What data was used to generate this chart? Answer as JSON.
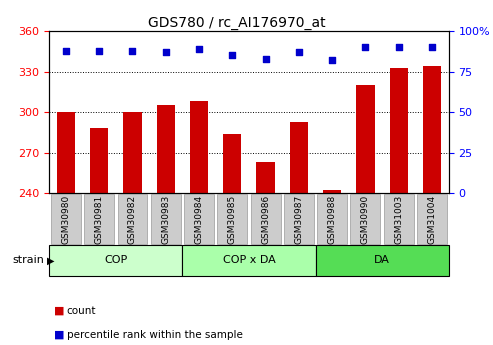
{
  "title": "GDS780 / rc_AI176970_at",
  "samples": [
    "GSM30980",
    "GSM30981",
    "GSM30982",
    "GSM30983",
    "GSM30984",
    "GSM30985",
    "GSM30986",
    "GSM30987",
    "GSM30988",
    "GSM30990",
    "GSM31003",
    "GSM31004"
  ],
  "bar_values": [
    300,
    288,
    300,
    305,
    308,
    284,
    263,
    293,
    242,
    320,
    333,
    334
  ],
  "percentile_values": [
    88,
    88,
    88,
    87,
    89,
    85,
    83,
    87,
    82,
    90,
    90,
    90
  ],
  "bar_color": "#cc0000",
  "dot_color": "#0000cc",
  "ylim_left": [
    240,
    360
  ],
  "ylim_right": [
    0,
    100
  ],
  "yticks_left": [
    240,
    270,
    300,
    330,
    360
  ],
  "yticks_right": [
    0,
    25,
    50,
    75,
    100
  ],
  "groups": [
    {
      "label": "COP",
      "start": 0,
      "end": 4,
      "color": "#ccffcc"
    },
    {
      "label": "COP x DA",
      "start": 4,
      "end": 8,
      "color": "#aaffaa"
    },
    {
      "label": "DA",
      "start": 8,
      "end": 12,
      "color": "#55dd55"
    }
  ],
  "strain_label": "strain",
  "legend_count_label": "count",
  "legend_pct_label": "percentile rank within the sample",
  "bar_width": 0.55,
  "tick_label_bg": "#cccccc",
  "grid_color": "#000000"
}
